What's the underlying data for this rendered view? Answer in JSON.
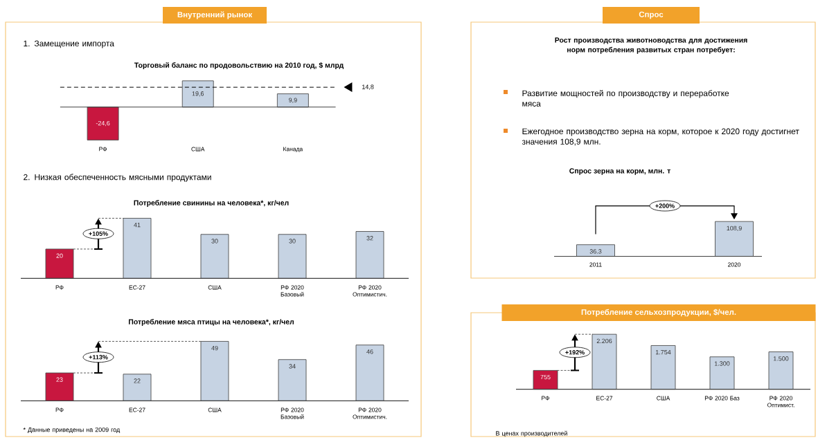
{
  "chart_data": [
    {
      "type": "bar",
      "title": "Торговый баланс по продовольствию на 2010 год, $ млрд",
      "categories": [
        "РФ",
        "США",
        "Канада"
      ],
      "values": [
        -24.6,
        19.6,
        9.9
      ],
      "colors": [
        "#c8173f",
        "#c6d3e3",
        "#c6d3e3"
      ],
      "value_labels": [
        "-24,6",
        "19,6",
        "9,9"
      ],
      "ref_lines": [
        {
          "axis": "y",
          "value": 14.8,
          "label": "14,8",
          "line_style": "dashed"
        }
      ],
      "annotations": [
        "Внутренний рынок",
        "1. Замещение импорта"
      ]
    },
    {
      "type": "bar",
      "title": "Потребление свинины на человека*, кг/чел",
      "categories": [
        "РФ",
        "ЕС-27",
        "США",
        "РФ 2020 Базовый",
        "РФ 2020 Оптимистич."
      ],
      "values": [
        20,
        41,
        30,
        30,
        32
      ],
      "colors": [
        "#c8173f",
        "#c6d3e3",
        "#c6d3e3",
        "#c6d3e3",
        "#c6d3e3"
      ],
      "value_labels": [
        "20",
        "41",
        "30",
        "30",
        "32"
      ],
      "annotations": [
        "2. Низкая обеспеченность мясными продуктами",
        "+105%"
      ]
    },
    {
      "type": "bar",
      "title": "Потребление мяса птицы на человека*, кг/чел",
      "categories": [
        "РФ",
        "ЕС-27",
        "США",
        "РФ 2020 Базовый",
        "РФ 2020 Оптимистич."
      ],
      "values": [
        23,
        22,
        49,
        34,
        46
      ],
      "colors": [
        "#c8173f",
        "#c6d3e3",
        "#c6d3e3",
        "#c6d3e3",
        "#c6d3e3"
      ],
      "value_labels": [
        "23",
        "22",
        "49",
        "34",
        "46"
      ],
      "annotations": [
        "+113%",
        "* Данные приведены на 2009 год"
      ]
    },
    {
      "type": "bar",
      "title": "Спрос зерна на корм, млн. т",
      "categories": [
        "2011",
        "2020"
      ],
      "values": [
        36.3,
        108.9
      ],
      "colors": [
        "#c6d3e3",
        "#c6d3e3"
      ],
      "value_labels": [
        "36.3",
        "108,9"
      ],
      "annotations": [
        "Спрос",
        "Рост производства животноводства для достижения норм потребления развитых стран потребует:",
        "Развитие мощностей по производству и переработке мяса",
        "Ежегодное производство зерна на корм, которое к 2020 году достигнет значения 108,9 млн.",
        "+200%"
      ]
    },
    {
      "type": "bar",
      "title": "Потребление сельхозпродукции, $/чел.",
      "categories": [
        "РФ",
        "ЕС-27",
        "США",
        "РФ 2020 Баз",
        "РФ 2020 Оптимист."
      ],
      "values": [
        755,
        2206,
        1754,
        1300,
        1500
      ],
      "colors": [
        "#c8173f",
        "#c6d3e3",
        "#c6d3e3",
        "#c6d3e3",
        "#c6d3e3"
      ],
      "value_labels": [
        "755",
        "2.206",
        "1.754",
        "1.300",
        "1.500"
      ],
      "annotations": [
        "+192%",
        "В ценах производителей"
      ]
    }
  ]
}
